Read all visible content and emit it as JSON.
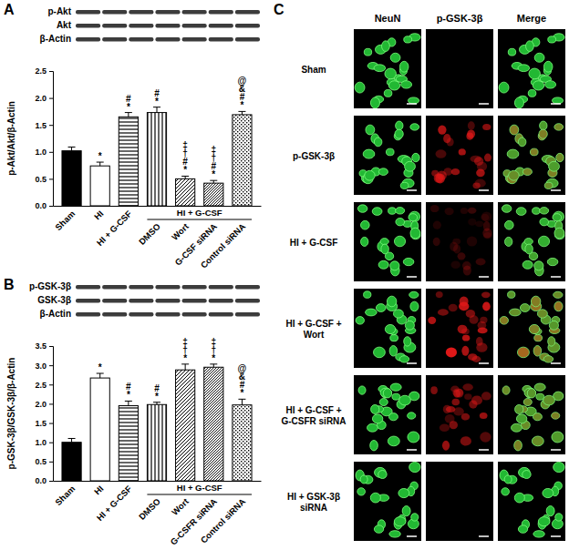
{
  "chart_data": [
    {
      "type": "bar",
      "panel_label": "A",
      "blot_labels": [
        "p-Akt",
        "Akt",
        "β-Actin"
      ],
      "categories": [
        "Sham",
        "HI",
        "HI + G-CSF",
        "DMSO",
        "Wort",
        "G-CSF siRNA",
        "Control siRNA"
      ],
      "group": {
        "label": "HI + G-CSF",
        "from": "DMSO",
        "to": "Control siRNA"
      },
      "values": [
        1.02,
        0.74,
        1.65,
        1.73,
        0.5,
        0.42,
        1.69
      ],
      "errors": [
        0.07,
        0.07,
        0.08,
        0.1,
        0.05,
        0.05,
        0.06
      ],
      "annotations": [
        [],
        [
          "*"
        ],
        [
          "#",
          "*"
        ],
        [
          "#",
          "*"
        ],
        [
          "‡",
          "†",
          "#",
          "*"
        ],
        [
          "‡",
          "†",
          "#",
          "*"
        ],
        [
          "@",
          "&",
          "#",
          "*"
        ]
      ],
      "colors": [
        "#000000",
        "#ffffff",
        "#ffffff",
        "#ffffff",
        "#ffffff",
        "#ffffff",
        "#ffffff"
      ],
      "y_label": "p-Akt/Akt/β-Actin",
      "ylim": [
        0,
        2.5
      ],
      "yticks": [
        {
          "value": 0,
          "label": "0.0"
        },
        0.5,
        {
          "value": 1,
          "label": "1.0"
        },
        1.5,
        {
          "value": 2,
          "label": "2.0"
        },
        2.5
      ]
    },
    {
      "type": "bar",
      "panel_label": "B",
      "blot_labels": [
        "p-GSK-3β",
        "GSK-3β",
        "β-Actin"
      ],
      "categories": [
        "Sham",
        "HI",
        "HI + G-CSF",
        "DMSO",
        "Wort",
        "G-CSFR siRNA",
        "Control siRNA"
      ],
      "group": {
        "label": "HI + G-CSF",
        "from": "DMSO",
        "to": "Control siRNA"
      },
      "values": [
        1.0,
        2.67,
        1.95,
        1.98,
        2.88,
        2.95,
        1.97
      ],
      "errors": [
        0.1,
        0.12,
        0.12,
        0.06,
        0.15,
        0.08,
        0.15
      ],
      "annotations": [
        [],
        [
          "*"
        ],
        [
          "#",
          "*"
        ],
        [
          "#",
          "*"
        ],
        [
          "‡",
          "†",
          "*"
        ],
        [
          "‡",
          "†",
          "*"
        ],
        [
          "@",
          "&",
          "#",
          "*"
        ]
      ],
      "colors": [
        "#000000",
        "#ffffff",
        "#ffffff",
        "#ffffff",
        "#ffffff",
        "#ffffff",
        "#ffffff"
      ],
      "y_label": "p-GSK-3β/GSK-3β/β-Actin",
      "ylim": [
        0,
        3.5
      ],
      "yticks": [
        {
          "value": 0,
          "label": "0.0"
        },
        0.5,
        {
          "value": 1,
          "label": "1.0"
        },
        1.5,
        {
          "value": 2,
          "label": "2.0"
        },
        2.5,
        {
          "value": 3,
          "label": "3.0"
        },
        3.5
      ]
    }
  ],
  "panel_c": {
    "label": "C",
    "columns": [
      "NeuN",
      "p-GSK-3β",
      "Merge"
    ],
    "rows": [
      "Sham",
      "p-GSK-3β",
      "HI + G-CSF",
      "HI + G-CSF + Wort",
      "HI + G-CSF + G-CSFR siRNA",
      "HI + GSK-3β siRNA"
    ]
  }
}
